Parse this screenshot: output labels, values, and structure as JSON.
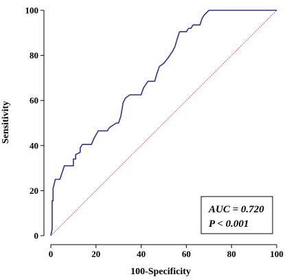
{
  "chart_data": {
    "type": "line",
    "xlabel": "100-Specificity",
    "ylabel": "Sensitivity",
    "xlim": [
      0,
      100
    ],
    "ylim": [
      0,
      100
    ],
    "x_ticks": [
      0,
      20,
      40,
      60,
      80,
      100
    ],
    "y_ticks": [
      0,
      20,
      40,
      60,
      80,
      100
    ],
    "grid": false,
    "legend": "none",
    "annotation": [
      "AUC = 0.720",
      "P < 0.001"
    ],
    "annotation_position": "bottom-right",
    "colors": {
      "roc": "#2e3192",
      "reference": "#c8102e",
      "axis": "#000000"
    },
    "series": [
      {
        "style": "solid",
        "x": [
          0,
          0.6,
          0.6,
          1,
          1,
          2,
          2,
          4,
          4,
          6,
          6,
          10,
          10,
          11,
          11,
          13,
          13,
          14,
          15,
          18,
          19,
          21,
          22,
          25,
          26,
          29,
          30,
          31,
          32,
          33,
          35,
          36,
          39,
          40,
          41,
          42,
          43,
          44,
          46,
          47,
          48,
          50,
          52,
          54,
          55,
          56,
          57,
          58,
          59,
          60,
          61,
          62,
          63,
          64,
          66,
          67,
          67,
          68,
          70,
          100
        ],
        "y": [
          0,
          3,
          15.5,
          15.5,
          21,
          25,
          25,
          25,
          25,
          31,
          31,
          31,
          34,
          34,
          36,
          37,
          39,
          40.5,
          40.5,
          40.5,
          43,
          46.5,
          46.5,
          46.5,
          48,
          50,
          50,
          53,
          59,
          61,
          62.5,
          62.5,
          62.5,
          62.5,
          65.5,
          67,
          68.5,
          68.5,
          68.5,
          72,
          75,
          76.5,
          79,
          82,
          84,
          87.5,
          90.5,
          90.5,
          90.5,
          90.5,
          92,
          92,
          93.5,
          93.5,
          93.5,
          96.5,
          96.5,
          98,
          100,
          100
        ]
      },
      {
        "style": "dotted",
        "x": [
          0,
          100
        ],
        "y": [
          0,
          100
        ]
      }
    ]
  }
}
